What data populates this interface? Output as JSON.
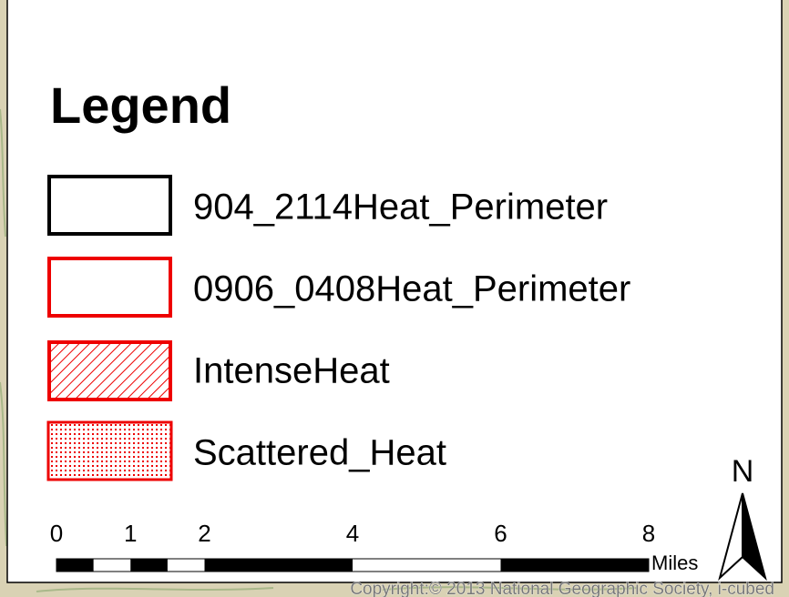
{
  "legend": {
    "title": "Legend",
    "items": [
      {
        "label": "904_2114Heat_Perimeter"
      },
      {
        "label": "0906_0408Heat_Perimeter"
      },
      {
        "label": "IntenseHeat"
      },
      {
        "label": "Scattered_Heat"
      }
    ]
  },
  "scale_bar": {
    "ticks": [
      0,
      1,
      2,
      4,
      6,
      8
    ],
    "unit": "Miles"
  },
  "north_arrow": {
    "label": "N"
  },
  "copyright": "Copyright:© 2013 National Geographic Society, i-cubed"
}
